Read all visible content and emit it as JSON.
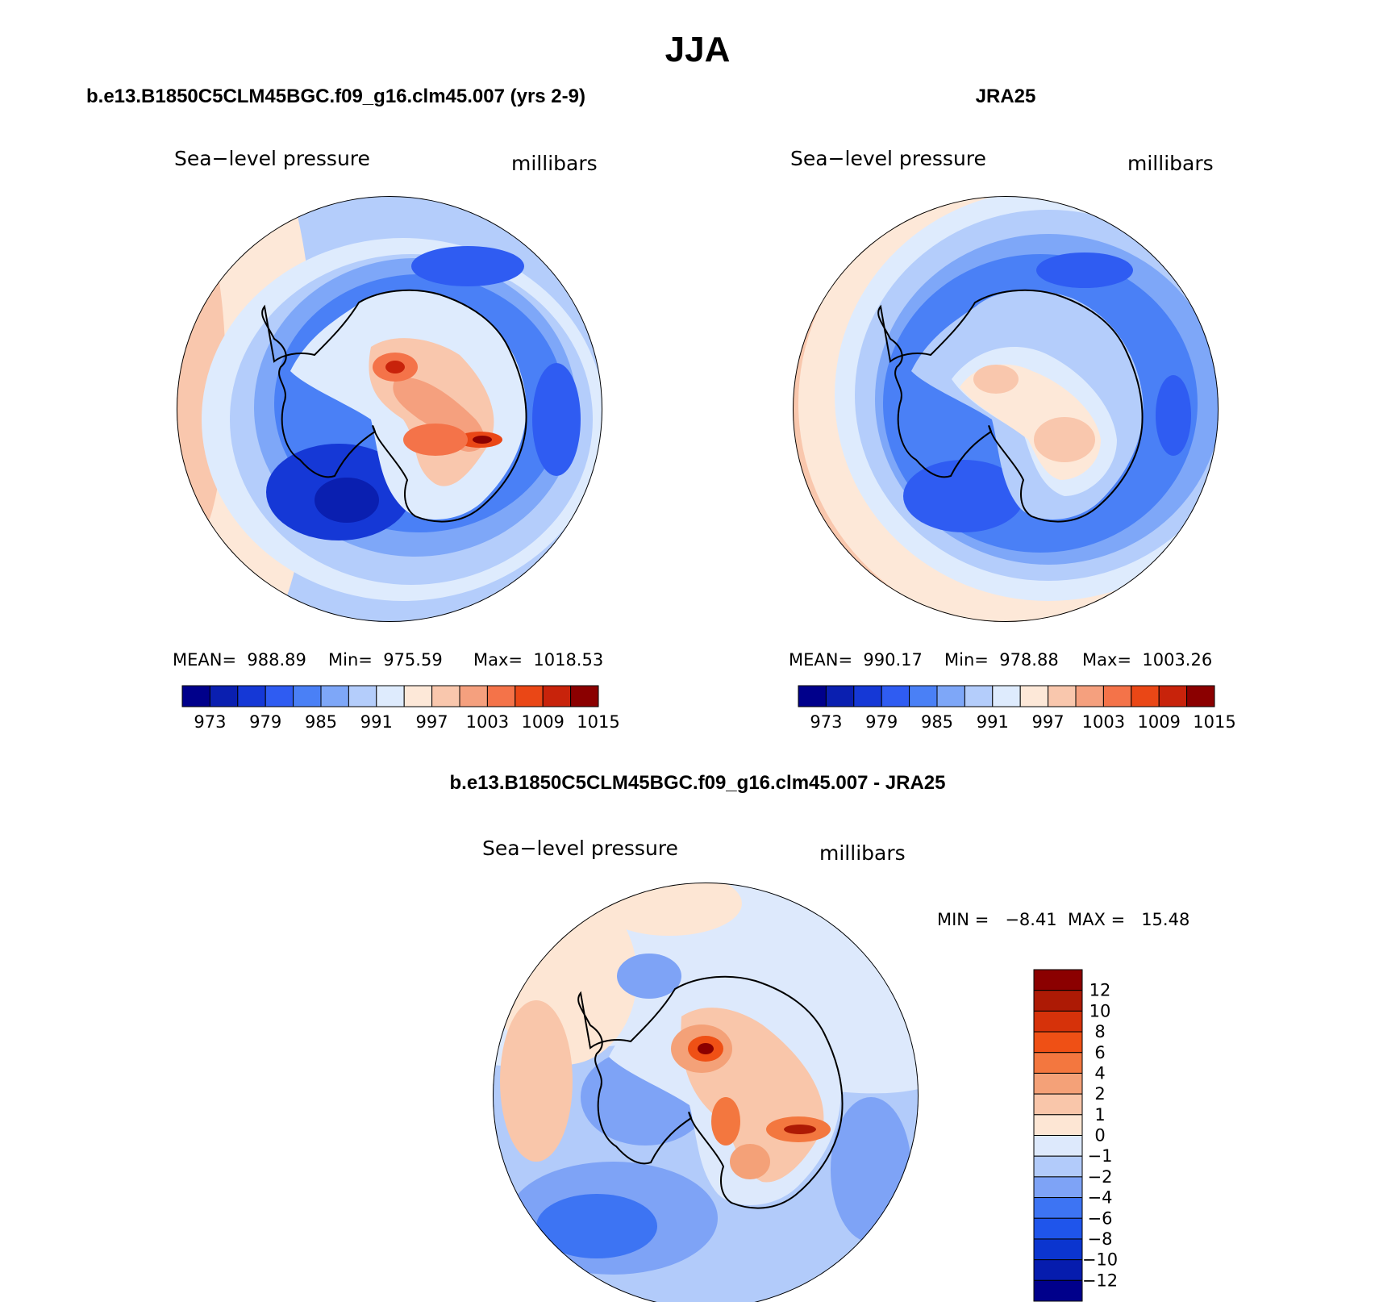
{
  "main_title": "JJA",
  "colors": {
    "model_obs_levels": [
      "#00008b",
      "#0a1fb0",
      "#1538d6",
      "#2f5cf2",
      "#4a80f6",
      "#7ea7f8",
      "#b4cdfb",
      "#deebfd",
      "#fde8d8",
      "#f9c7ad",
      "#f5a07e",
      "#f47349",
      "#ea4716",
      "#c8230b",
      "#8b0000"
    ],
    "diff_levels": [
      "#00008b",
      "#061cae",
      "#0b35cf",
      "#1f55eb",
      "#3d74f3",
      "#7ea3f6",
      "#b2cbfa",
      "#dde9fc",
      "#fde6d4",
      "#f9c6aa",
      "#f4a178",
      "#f3773f",
      "#ef5015",
      "#d6320a",
      "#ad1a05",
      "#8b0000"
    ]
  },
  "chart_data": [
    {
      "type": "heatmap",
      "projection": "south-polar-stereographic",
      "title": "b.e13.B1850C5CLM45BGC.f09_g16.clm45.007 (yrs 2-9)",
      "variable_label": "Sea−level pressure",
      "units_label": "millibars",
      "stats": {
        "mean_text": "MEAN=  988.89",
        "min_text": "Min=  975.59",
        "max_text": "Max=  1018.53",
        "mean": 988.89,
        "min": 975.59,
        "max": 1018.53
      },
      "colorbar": {
        "orientation": "horizontal",
        "tick_labels": [
          "973",
          "979",
          "985",
          "991",
          "997",
          "1003",
          "1009",
          "1015"
        ],
        "levels": [
          970,
          973,
          976,
          979,
          982,
          985,
          988,
          991,
          994,
          997,
          1000,
          1003,
          1006,
          1009,
          1012,
          1015,
          1018
        ]
      }
    },
    {
      "type": "heatmap",
      "projection": "south-polar-stereographic",
      "title": "JRA25",
      "variable_label": "Sea−level pressure",
      "units_label": "millibars",
      "stats": {
        "mean_text": "MEAN=  990.17",
        "min_text": "Min=  978.88",
        "max_text": "Max=  1003.26",
        "mean": 990.17,
        "min": 978.88,
        "max": 1003.26
      },
      "colorbar": {
        "orientation": "horizontal",
        "tick_labels": [
          "973",
          "979",
          "985",
          "991",
          "997",
          "1003",
          "1009",
          "1015"
        ],
        "levels": [
          970,
          973,
          976,
          979,
          982,
          985,
          988,
          991,
          994,
          997,
          1000,
          1003,
          1006,
          1009,
          1012,
          1015,
          1018
        ]
      }
    },
    {
      "type": "heatmap",
      "projection": "south-polar-stereographic",
      "title": "b.e13.B1850C5CLM45BGC.f09_g16.clm45.007 - JRA25",
      "variable_label": "Sea−level pressure",
      "units_label": "millibars",
      "stats": {
        "min_max_text": "MIN =   −8.41  MAX =   15.48",
        "min": -8.41,
        "max": 15.48
      },
      "colorbar": {
        "orientation": "vertical",
        "tick_labels": [
          "12",
          "10",
          "8",
          "6",
          "4",
          "2",
          "1",
          "0",
          "−1",
          "−2",
          "−4",
          "−6",
          "−8",
          "−10",
          "−12"
        ],
        "levels": [
          14,
          12,
          10,
          8,
          6,
          4,
          2,
          1,
          0,
          -1,
          -2,
          -4,
          -6,
          -8,
          -10,
          -12,
          -14
        ]
      }
    }
  ]
}
